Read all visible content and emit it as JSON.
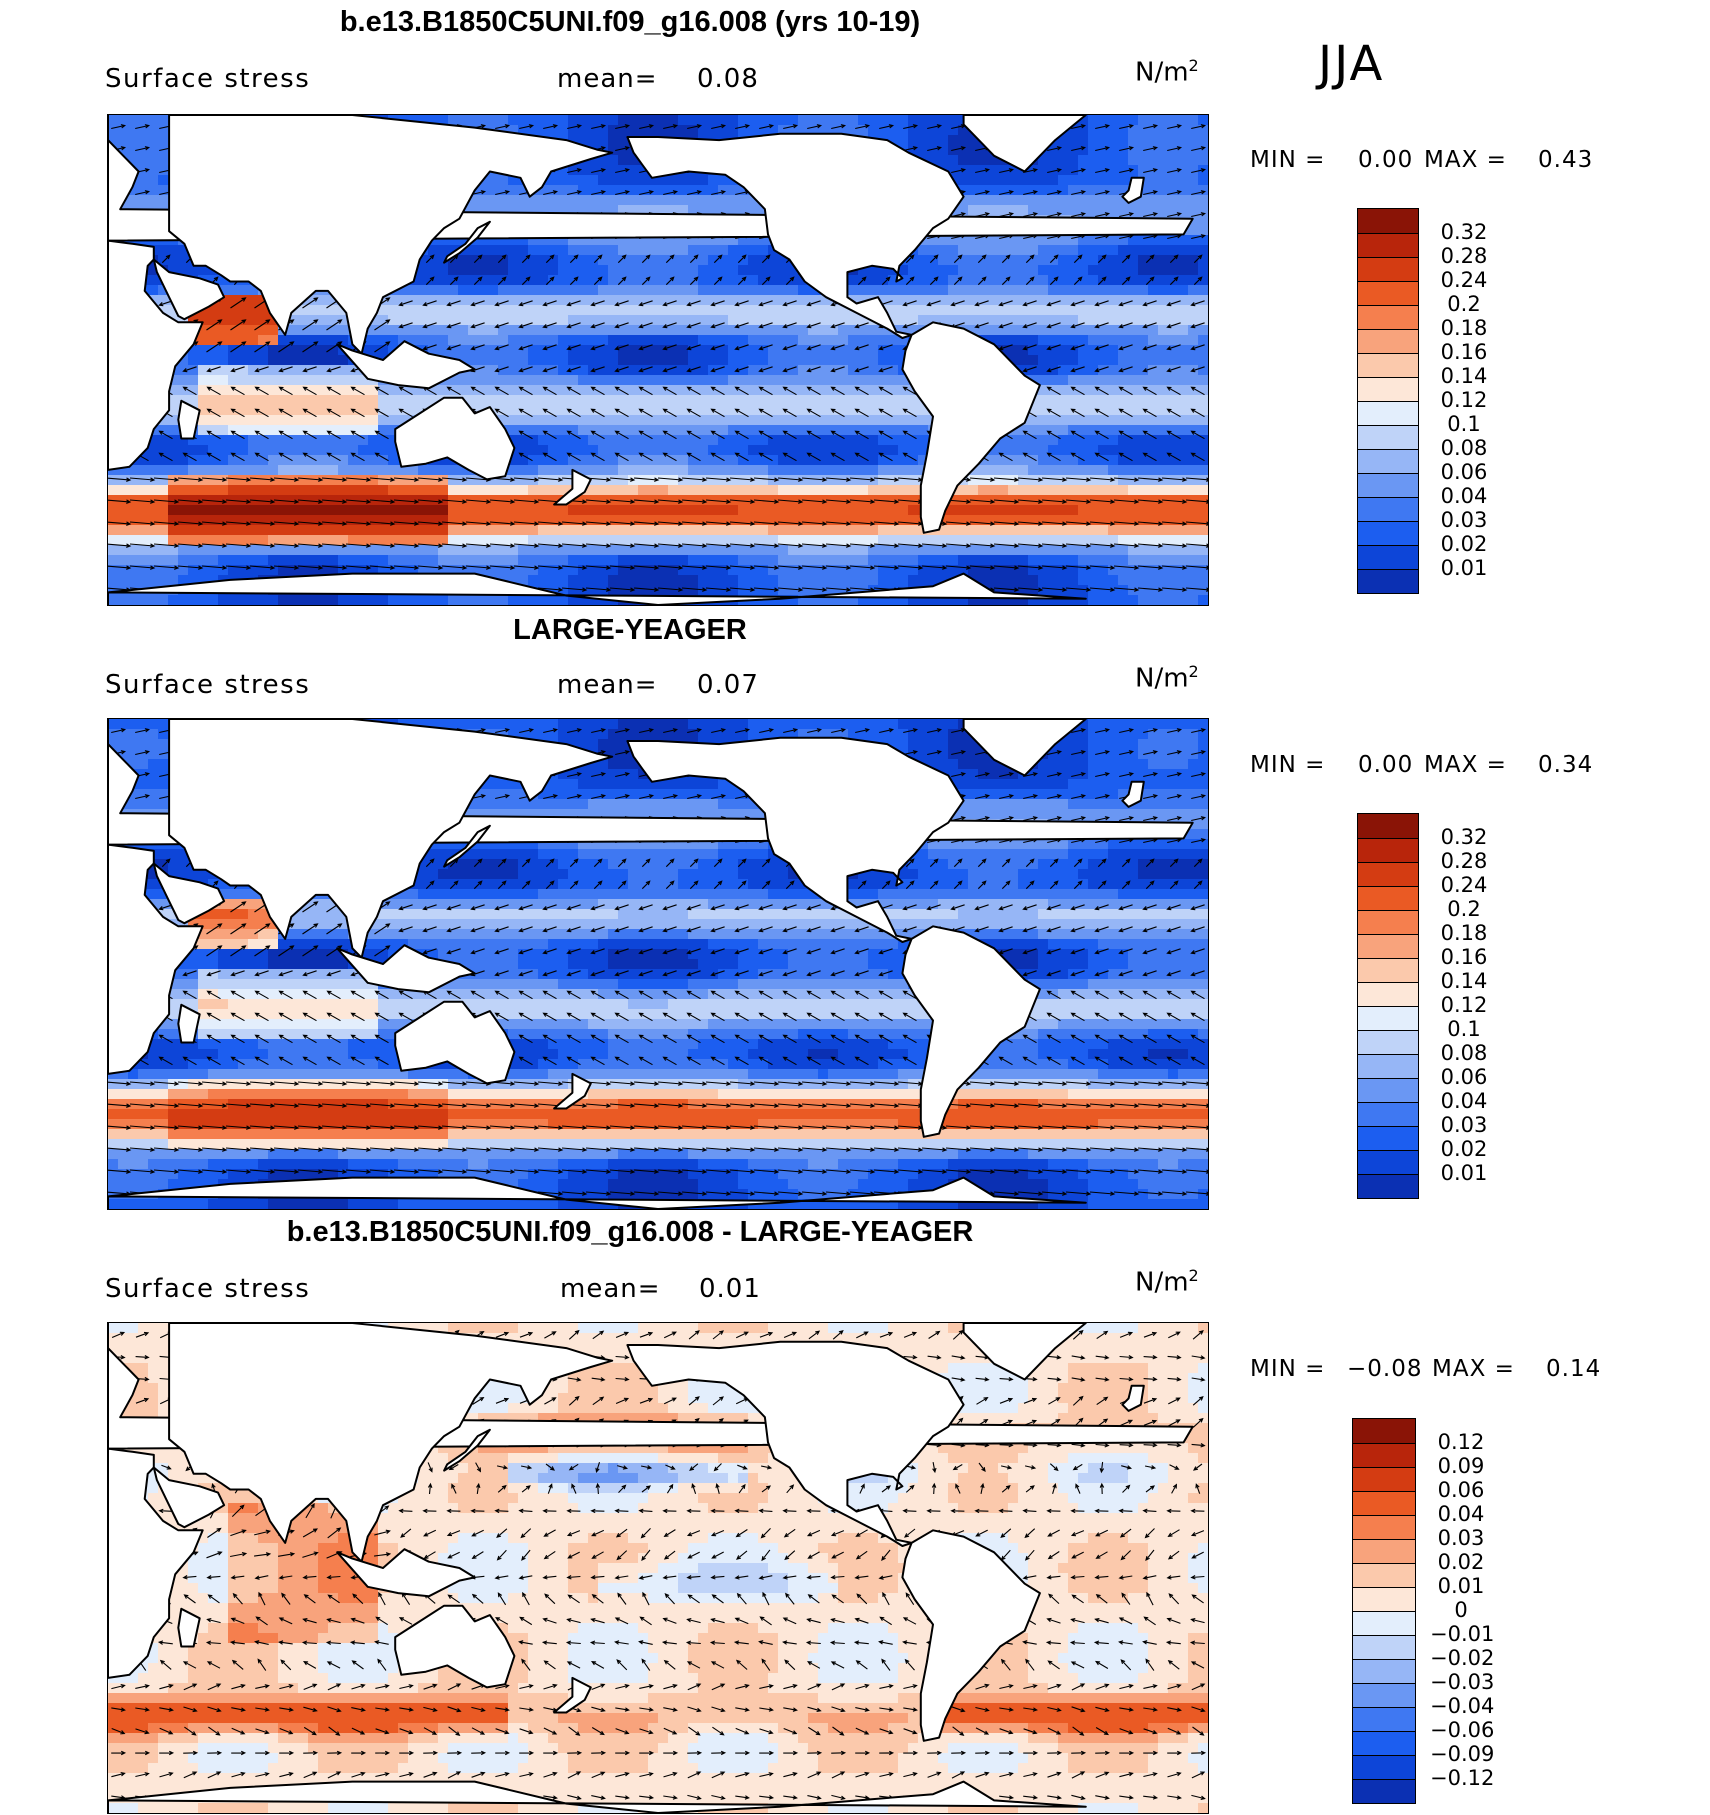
{
  "season": "JJA",
  "units": {
    "base": "N/m",
    "exp": "2"
  },
  "colors": {
    "land": "#ffffff",
    "coast": "#000000",
    "arrow": "#000000",
    "abs_scale": [
      "#0a1f7a",
      "#0b30b3",
      "#0d45d8",
      "#1c5ef0",
      "#3f78f2",
      "#6a97f3",
      "#96b6f6",
      "#bfd3f8",
      "#e3eefc",
      "#fde7d8",
      "#fbc9ac",
      "#f8a37c",
      "#f57f4e",
      "#ea5a24",
      "#d43c12",
      "#b8250b",
      "#8a1406"
    ],
    "diff_scale": [
      "#0a1f7a",
      "#0b30b3",
      "#0d45d8",
      "#1c5ef0",
      "#3f78f2",
      "#6a97f3",
      "#96b6f6",
      "#bfd3f8",
      "#e3eefc",
      "#fde7d8",
      "#fbc9ac",
      "#f8a37c",
      "#f57f4e",
      "#ea5a24",
      "#d43c12",
      "#b8250b",
      "#8a1406"
    ]
  },
  "panels": [
    {
      "title": "b.e13.B1850C5UNI.f09_g16.008 (yrs 10-19)",
      "left_label": "Surface stress",
      "mean_label": "mean=",
      "mean_value": "0.08",
      "min_label": "MIN =",
      "min_value": "0.00",
      "max_label": "MAX =",
      "max_value": "0.43",
      "levels": [
        "0.32",
        "0.28",
        "0.24",
        "0.2",
        "0.18",
        "0.16",
        "0.14",
        "0.12",
        "0.1",
        "0.08",
        "0.06",
        "0.04",
        "0.03",
        "0.02",
        "0.01"
      ],
      "kind": "abs"
    },
    {
      "title": "LARGE-YEAGER",
      "left_label": "Surface stress",
      "mean_label": "mean=",
      "mean_value": "0.07",
      "min_label": "MIN =",
      "min_value": "0.00",
      "max_label": "MAX =",
      "max_value": "0.34",
      "levels": [
        "0.32",
        "0.28",
        "0.24",
        "0.2",
        "0.18",
        "0.16",
        "0.14",
        "0.12",
        "0.1",
        "0.08",
        "0.06",
        "0.04",
        "0.03",
        "0.02",
        "0.01"
      ],
      "kind": "abs"
    },
    {
      "title": "b.e13.B1850C5UNI.f09_g16.008 - LARGE-YEAGER",
      "left_label": "Surface stress",
      "mean_label": "mean=",
      "mean_value": "0.01",
      "min_label": "MIN =",
      "min_value": "−0.08",
      "max_label": "MAX =",
      "max_value": "0.14",
      "levels": [
        "0.12",
        "0.09",
        "0.06",
        "0.04",
        "0.03",
        "0.02",
        "0.01",
        "0",
        "−0.01",
        "−0.02",
        "−0.03",
        "−0.04",
        "−0.06",
        "−0.09",
        "−0.12"
      ],
      "kind": "diff"
    }
  ]
}
